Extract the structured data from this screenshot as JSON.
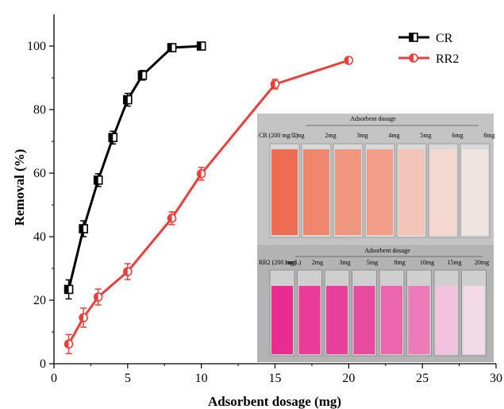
{
  "colors": {
    "cr": "#000000",
    "rr2": "#e8403c",
    "photo_bg": "#b9b9b9"
  },
  "chart_data": {
    "type": "line",
    "xlabel": "Adsorbent dosage (mg)",
    "ylabel": "Removal (%)",
    "xlim": [
      0,
      30
    ],
    "ylim": [
      0,
      110
    ],
    "xticks": [
      0,
      5,
      10,
      15,
      20,
      25,
      30
    ],
    "yticks": [
      0,
      20,
      40,
      60,
      80,
      100
    ],
    "legend_position": "top-right",
    "grid": false,
    "series": [
      {
        "name": "CR",
        "color": "#000000",
        "marker": "half-filled-square",
        "x": [
          1,
          2,
          3,
          4,
          5,
          6,
          8,
          10
        ],
        "y": [
          23.4,
          42.5,
          57.8,
          71.2,
          83.1,
          90.8,
          99.5,
          100.0
        ],
        "err": [
          3.0,
          2.5,
          2.0,
          2.0,
          2.0,
          1.5,
          0.5,
          0.5
        ]
      },
      {
        "name": "RR2",
        "color": "#e8403c",
        "marker": "half-filled-circle",
        "x": [
          1,
          2,
          3,
          5,
          8,
          10,
          15,
          20
        ],
        "y": [
          6.2,
          14.5,
          21.0,
          29.0,
          45.8,
          59.8,
          88.0,
          95.5
        ],
        "err": [
          3.0,
          3.0,
          2.5,
          2.5,
          2.0,
          2.0,
          1.5,
          1.0
        ]
      }
    ]
  },
  "inset_photo": {
    "top_panel": {
      "header": "Adsorbent dosage",
      "sample_label": "CR (200 mg/L)",
      "labels": [
        "1mg",
        "2mg",
        "3mg",
        "4mg",
        "5mg",
        "6mg",
        "8mg"
      ],
      "colors": [
        "#ee6d52",
        "#ef876e",
        "#f0977f",
        "#f19d88",
        "#f3c5b9",
        "#f4d8d0",
        "#f1e5e1"
      ]
    },
    "bottom_panel": {
      "header": "Adsorbent dosage",
      "sample_label": "RR2 (200 mg/L)",
      "labels": [
        "1mg",
        "2mg",
        "3mg",
        "5mg",
        "8mg",
        "10mg",
        "15mg",
        "20mg"
      ],
      "colors": [
        "#e92c8f",
        "#ea3b98",
        "#e8409a",
        "#e84a9f",
        "#eb66ae",
        "#ec7bb9",
        "#f2c2de",
        "#f3dae8"
      ]
    }
  }
}
